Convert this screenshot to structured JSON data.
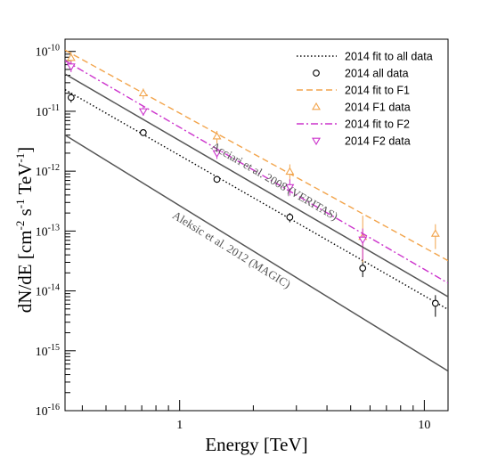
{
  "chart_data": {
    "type": "scatter",
    "title": "",
    "xlabel": "Energy [TeV]",
    "ylabel_parts": [
      "dN/dE [cm",
      "-2",
      " s",
      "-1",
      " TeV",
      "-1",
      "]"
    ],
    "x_scale": "log",
    "y_scale": "log",
    "xlim": [
      0.34,
      12.5
    ],
    "ylim": [
      1e-16,
      1.6e-10
    ],
    "x_ticks": [
      {
        "value": 1,
        "label": "1"
      },
      {
        "value": 10,
        "label": "10"
      }
    ],
    "y_ticks": [
      {
        "value": 1e-16,
        "base": "10",
        "exp": "-16"
      },
      {
        "value": 1e-15,
        "base": "10",
        "exp": "-15"
      },
      {
        "value": 1e-14,
        "base": "10",
        "exp": "-14"
      },
      {
        "value": 1e-13,
        "base": "10",
        "exp": "-13"
      },
      {
        "value": 1e-12,
        "base": "10",
        "exp": "-12"
      },
      {
        "value": 1e-11,
        "base": "10",
        "exp": "-11"
      },
      {
        "value": 1e-10,
        "base": "10",
        "exp": "-10"
      }
    ],
    "legend_position": "top-right",
    "grid": false,
    "series": [
      {
        "name": "2014 fit to all data",
        "kind": "line",
        "style": "dotted",
        "color": "#000000",
        "x": [
          0.34,
          12.5
        ],
        "y": [
          2.3e-11,
          4.9e-15
        ]
      },
      {
        "name": "2014 all data",
        "kind": "points",
        "marker": "circle",
        "color": "#000000",
        "x": [
          0.36,
          0.71,
          1.42,
          2.82,
          5.6,
          11.1
        ],
        "y": [
          1.7e-11,
          4.4e-12,
          7.3e-13,
          1.7e-13,
          2.4e-14,
          6.2e-15
        ],
        "err_lo": [
          1.4e-11,
          4e-12,
          6.4e-13,
          1.4e-13,
          1.7e-14,
          3.7e-15
        ],
        "err_hi": [
          2e-11,
          4.8e-12,
          8.3e-13,
          2e-13,
          3.2e-14,
          8.5e-15
        ]
      },
      {
        "name": "2014 fit to F1",
        "kind": "line",
        "style": "dashed",
        "color": "#f2a44b",
        "x": [
          0.34,
          12.5
        ],
        "y": [
          1.05e-10,
          3.2e-14
        ]
      },
      {
        "name": "2014 F1 data",
        "kind": "points",
        "marker": "triangle-up",
        "color": "#f2a44b",
        "x": [
          0.36,
          0.71,
          1.42,
          2.82,
          5.6,
          11.1
        ],
        "y": [
          7.8e-11,
          2e-11,
          3.8e-12,
          9.8e-13,
          8e-14,
          9e-14
        ],
        "err_lo": [
          6e-11,
          1.6e-11,
          2.9e-12,
          6.8e-13,
          3e-14,
          5e-14
        ],
        "err_hi": [
          9.8e-11,
          2.4e-11,
          4.7e-12,
          1.3e-12,
          1.8e-13,
          1.3e-13
        ]
      },
      {
        "name": "2014 fit to F2",
        "kind": "line",
        "style": "dashdot",
        "color": "#cc33cc",
        "x": [
          0.34,
          12.5
        ],
        "y": [
          7e-11,
          1.35e-14
        ]
      },
      {
        "name": "2014 F2 data",
        "kind": "points",
        "marker": "triangle-down",
        "color": "#cc33cc",
        "x": [
          0.36,
          0.71,
          1.42,
          2.82,
          5.6
        ],
        "y": [
          5.6e-11,
          1e-11,
          2e-12,
          5.4e-13,
          7.2e-14
        ],
        "err_lo": [
          4.5e-11,
          8.4e-12,
          1.6e-12,
          3.9e-13,
          3.3e-14
        ],
        "err_hi": [
          6.9e-11,
          1.2e-11,
          2.5e-12,
          7.3e-13,
          1.1e-13
        ]
      },
      {
        "name": "",
        "kind": "line",
        "style": "solid",
        "color": "#555555",
        "x": [
          0.34,
          12.5
        ],
        "y": [
          4.2e-11,
          8e-15
        ]
      },
      {
        "name": "",
        "kind": "line",
        "style": "solid",
        "color": "#555555",
        "x": [
          0.34,
          12.5
        ],
        "y": [
          4e-12,
          4.6e-16
        ]
      }
    ],
    "annotations": [
      {
        "text": "Acciari et al. 2008 (VERITAS)",
        "x": 2.4,
        "y": 6e-13
      },
      {
        "text": "Aleksic et al. 2012 (MAGIC)",
        "x": 1.6,
        "y": 4.3e-14
      }
    ]
  }
}
